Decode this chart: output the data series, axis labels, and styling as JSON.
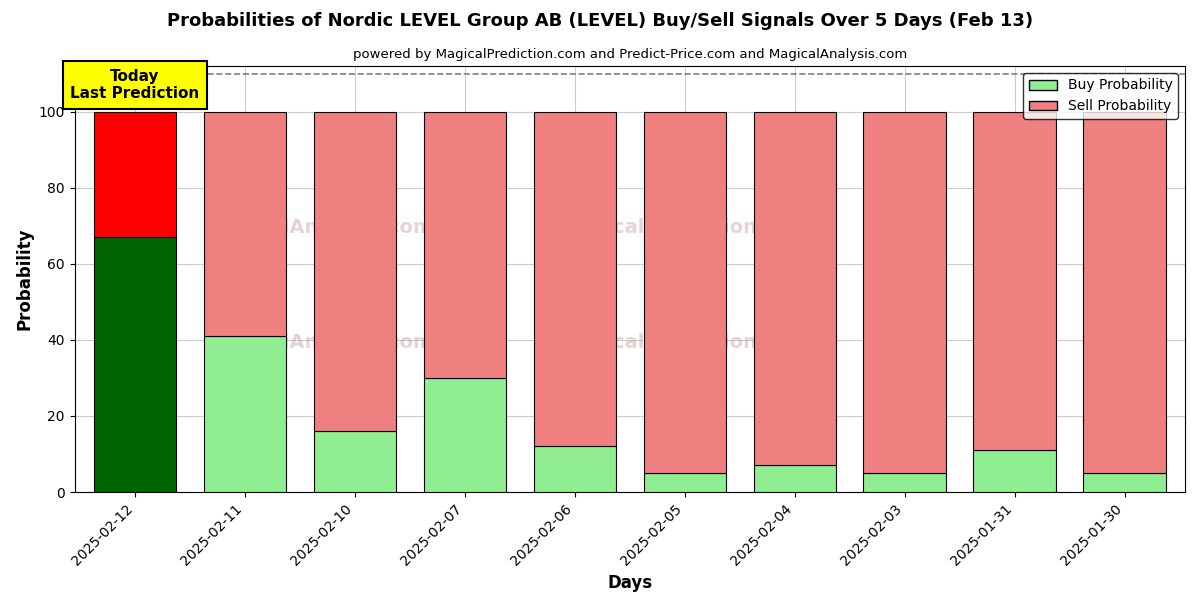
{
  "title": "Probabilities of Nordic LEVEL Group AB (LEVEL) Buy/Sell Signals Over 5 Days (Feb 13)",
  "subtitle": "powered by MagicalPrediction.com and Predict-Price.com and MagicalAnalysis.com",
  "xlabel": "Days",
  "ylabel": "Probability",
  "dates": [
    "2025-02-12",
    "2025-02-11",
    "2025-02-10",
    "2025-02-07",
    "2025-02-06",
    "2025-02-05",
    "2025-02-04",
    "2025-02-03",
    "2025-01-31",
    "2025-01-30"
  ],
  "buy_values": [
    67,
    41,
    16,
    30,
    12,
    5,
    7,
    5,
    11,
    5
  ],
  "sell_values": [
    33,
    59,
    84,
    70,
    88,
    95,
    93,
    95,
    89,
    95
  ],
  "buy_color_today": "#006400",
  "sell_color_today": "#ff0000",
  "buy_color_normal": "#90ee90",
  "sell_color_normal": "#f08080",
  "today_annotation": "Today\nLast Prediction",
  "today_annotation_bg": "#ffff00",
  "ylim": [
    0,
    112
  ],
  "yticks": [
    0,
    20,
    40,
    60,
    80,
    100
  ],
  "dashed_line_y": 110,
  "legend_buy": "Buy Probability",
  "legend_sell": "Sell Probability",
  "bg_color": "#ffffff",
  "grid_color": "#cccccc",
  "bar_width": 0.75
}
